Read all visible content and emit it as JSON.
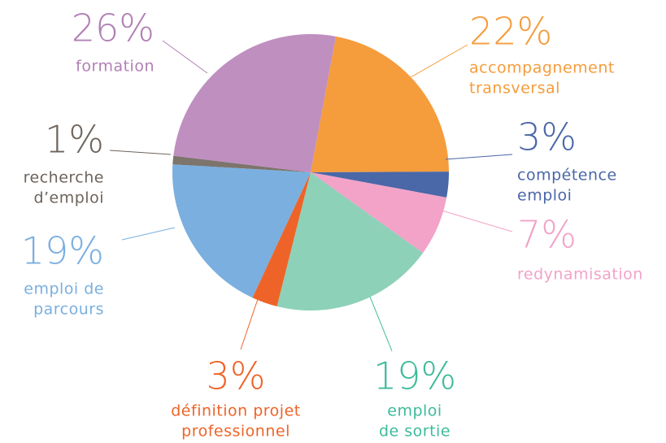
{
  "chart_data": {
    "type": "pie",
    "categories": [
      [
        "accompagnement",
        "transversal"
      ],
      [
        "compétence",
        "emploi"
      ],
      [
        "redynamisation"
      ],
      [
        "emploi",
        "de sortie"
      ],
      [
        "définition projet",
        "professionnel"
      ],
      [
        "emploi de",
        "parcours"
      ],
      [
        "recherche",
        "d’emploi"
      ],
      [
        "formation"
      ]
    ],
    "values": [
      22,
      3,
      7,
      19,
      3,
      19,
      1,
      26
    ],
    "value_labels": [
      "22%",
      "3%",
      "7%",
      "19%",
      "3%",
      "19%",
      "1%",
      "26%"
    ],
    "colors": [
      "#f59c3c",
      "#4a67a8",
      "#f2a3c7",
      "#8dd1b8",
      "#ee6428",
      "#7aafe0",
      "#7d746c",
      "#bf8fc0"
    ],
    "label_colors": [
      "#f59c3c",
      "#4a67a8",
      "#f2a3c7",
      "#3dbb9a",
      "#ee6428",
      "#7aafe0",
      "#6d645c",
      "#b17fb5"
    ]
  }
}
